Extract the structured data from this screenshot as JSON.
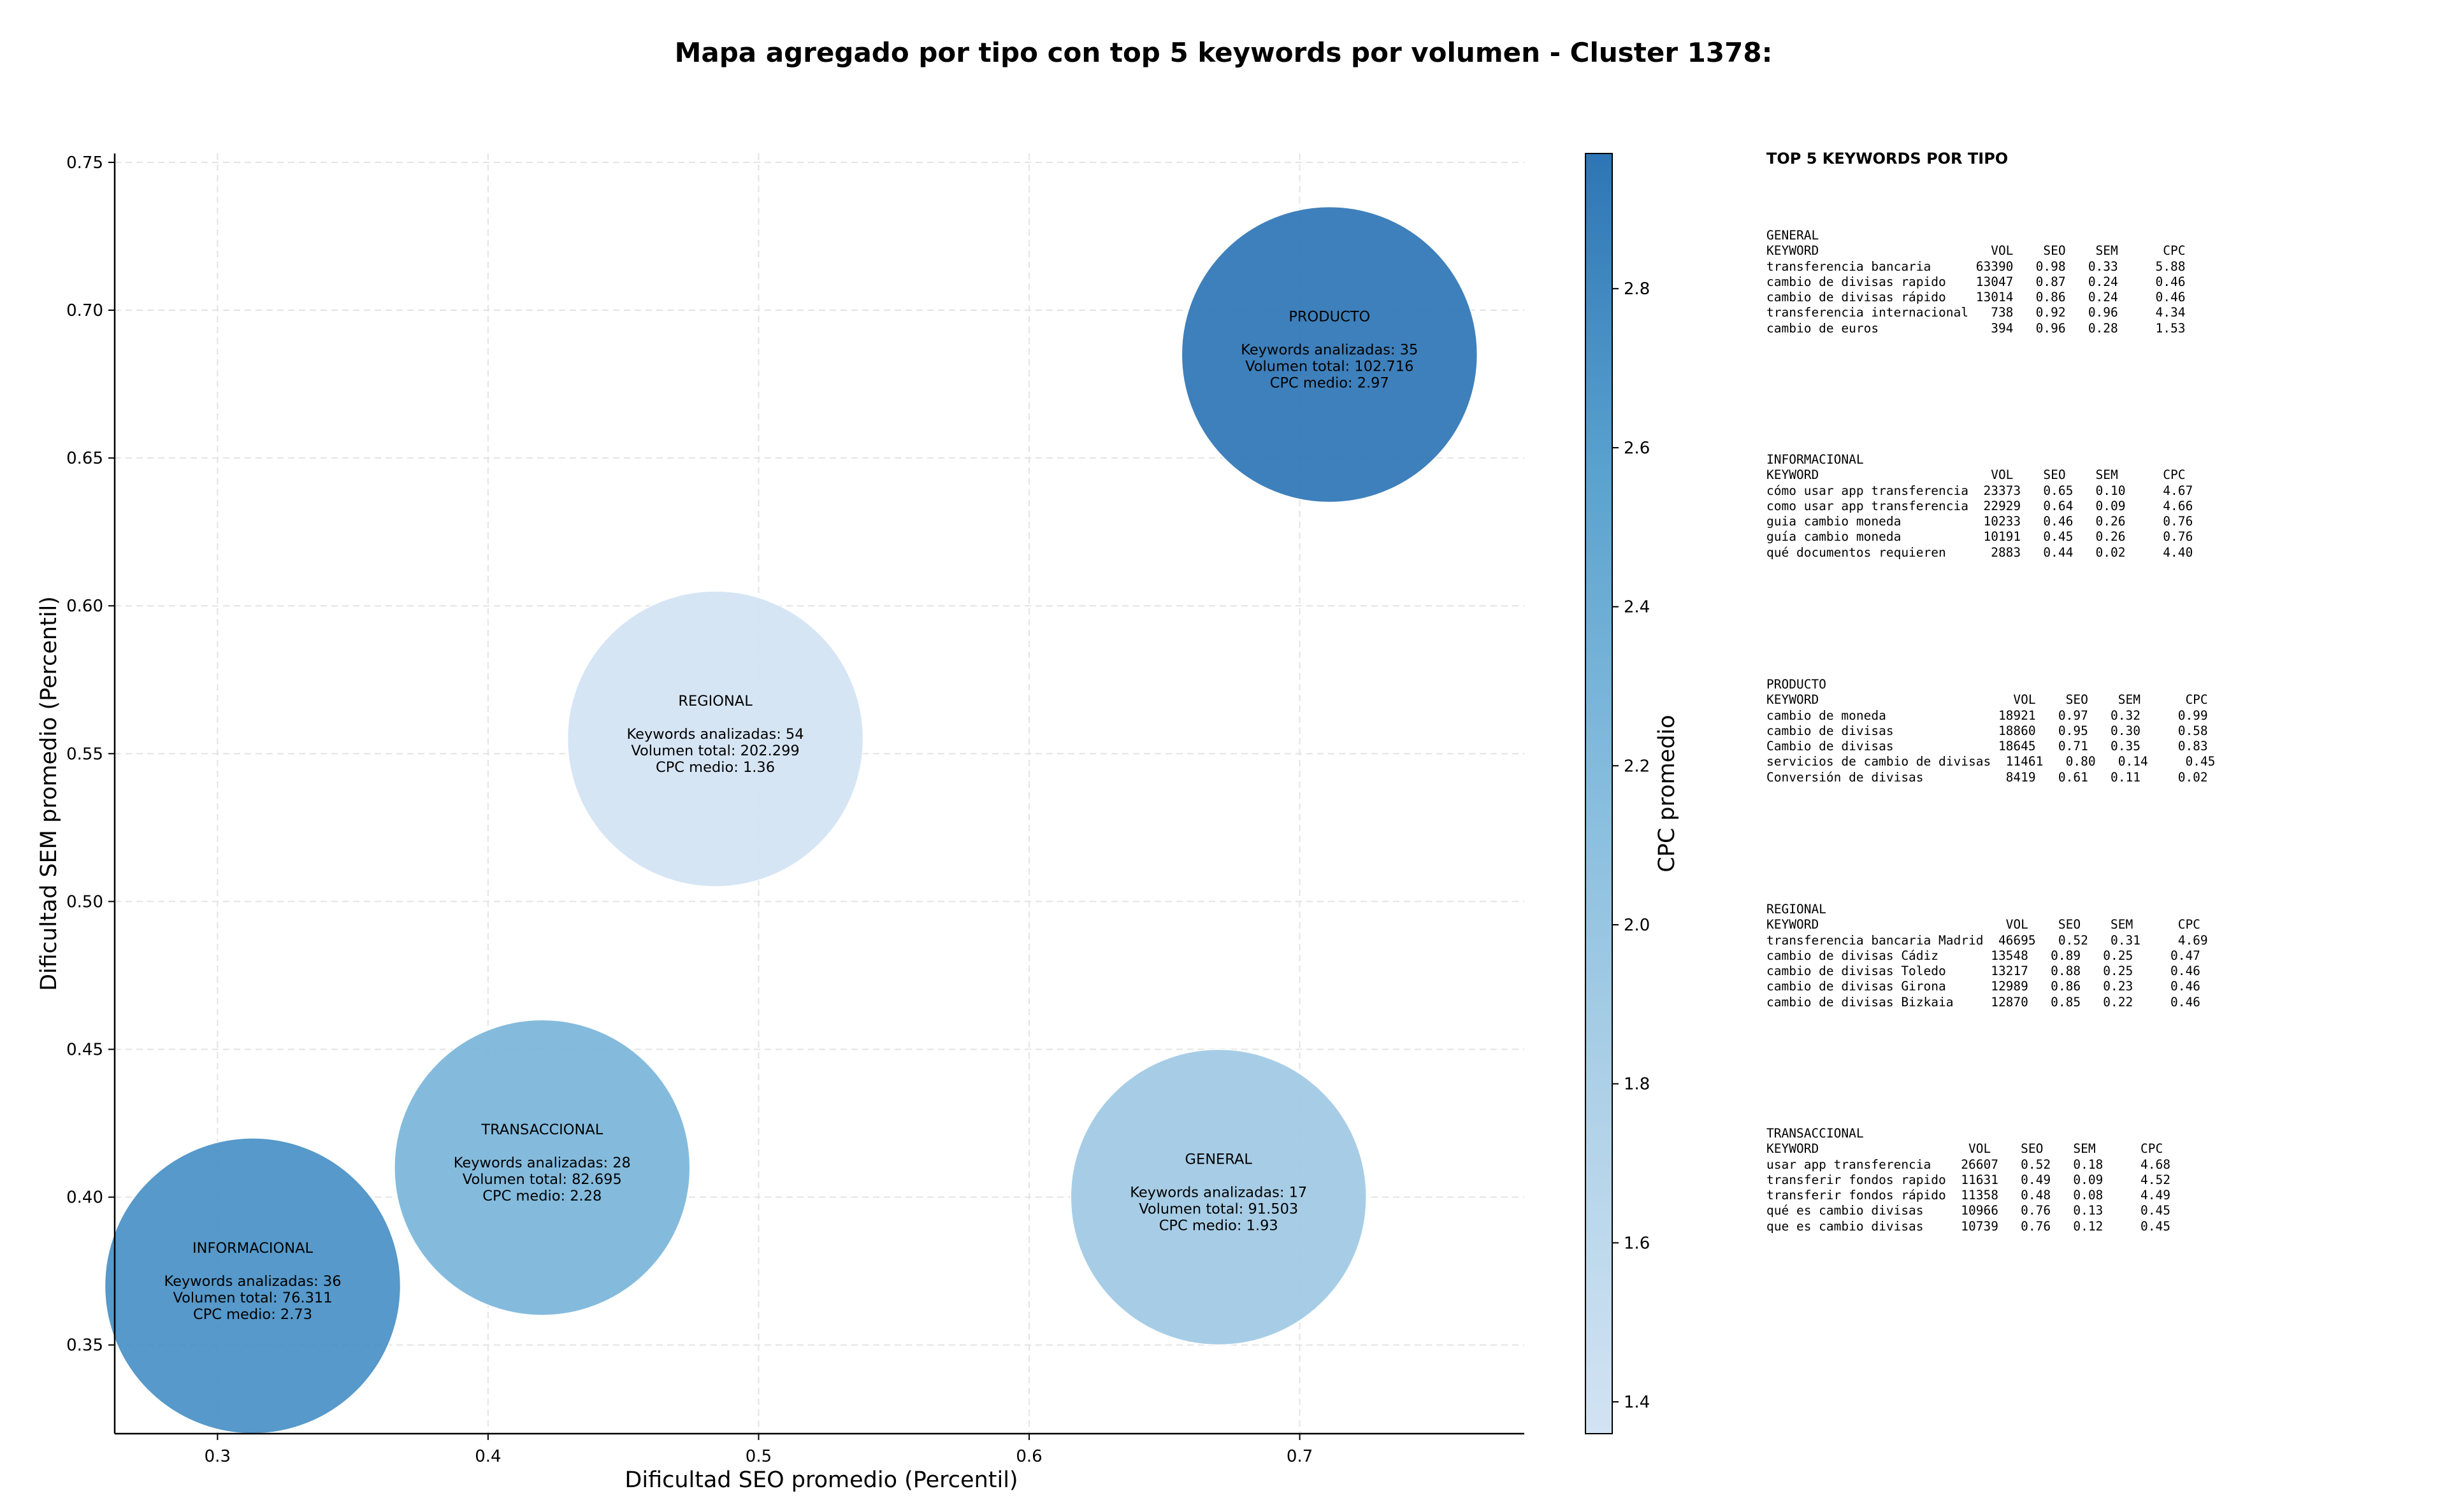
{
  "chart_data": {
    "type": "scatter",
    "title": "Mapa agregado por tipo con top 5 keywords por volumen - Cluster 1378:",
    "xlabel": "Dificultad SEO promedio (Percentil)",
    "ylabel": "Dificultad SEM promedio (Percentil)",
    "xlim": [
      0.262,
      0.783
    ],
    "ylim": [
      0.32,
      0.753
    ],
    "xticks": [
      "0.3",
      "0.4",
      "0.5",
      "0.6",
      "0.7"
    ],
    "yticks": [
      "0.35",
      "0.40",
      "0.45",
      "0.50",
      "0.55",
      "0.60",
      "0.65",
      "0.70",
      "0.75"
    ],
    "grid": true,
    "colorbar": {
      "label": "CPC promedio",
      "min": 1.36,
      "max": 2.97,
      "ticks": [
        "1.4",
        "1.6",
        "1.8",
        "2.0",
        "2.2",
        "2.4",
        "2.6",
        "2.8"
      ]
    },
    "points": [
      {
        "tipo": "PRODUCTO",
        "x": 0.711,
        "y": 0.685,
        "keywords_line": "Keywords analizadas: 35",
        "volumen_line": "Volumen total: 102.716",
        "cpc_line": "CPC medio: 2.97",
        "keywords": 35,
        "volumen": 102716,
        "cpc": 2.97
      },
      {
        "tipo": "REGIONAL",
        "x": 0.484,
        "y": 0.555,
        "keywords_line": "Keywords analizadas: 54",
        "volumen_line": "Volumen total: 202.299",
        "cpc_line": "CPC medio: 1.36",
        "keywords": 54,
        "volumen": 202299,
        "cpc": 1.36
      },
      {
        "tipo": "TRANSACCIONAL",
        "x": 0.42,
        "y": 0.41,
        "keywords_line": "Keywords analizadas: 28",
        "volumen_line": "Volumen total: 82.695",
        "cpc_line": "CPC medio: 2.28",
        "keywords": 28,
        "volumen": 82695,
        "cpc": 2.28
      },
      {
        "tipo": "GENERAL",
        "x": 0.67,
        "y": 0.4,
        "keywords_line": "Keywords analizadas: 17",
        "volumen_line": "Volumen total: 91.503",
        "cpc_line": "CPC medio: 1.93",
        "keywords": 17,
        "volumen": 91503,
        "cpc": 1.93
      },
      {
        "tipo": "INFORMACIONAL",
        "x": 0.313,
        "y": 0.37,
        "keywords_line": "Keywords analizadas: 36",
        "volumen_line": "Volumen total: 76.311",
        "cpc_line": "CPC medio: 2.73",
        "keywords": 36,
        "volumen": 76311,
        "cpc": 2.73
      }
    ]
  },
  "side_panel": {
    "title": "TOP 5 KEYWORDS POR TIPO",
    "blocks": [
      {
        "tipo": "GENERAL",
        "lines": [
          "GENERAL",
          "KEYWORD                       VOL    SEO    SEM      CPC",
          "transferencia bancaria      63390   0.98   0.33     5.88",
          "cambio de divisas rapido    13047   0.87   0.24     0.46",
          "cambio de divisas rápido    13014   0.86   0.24     0.46",
          "transferencia internacional   738   0.92   0.96     4.34",
          "cambio de euros               394   0.96   0.28     1.53"
        ]
      },
      {
        "tipo": "INFORMACIONAL",
        "lines": [
          "INFORMACIONAL",
          "KEYWORD                       VOL    SEO    SEM      CPC",
          "cómo usar app transferencia  23373   0.65   0.10     4.67",
          "como usar app transferencia  22929   0.64   0.09     4.66",
          "guia cambio moneda           10233   0.46   0.26     0.76",
          "guía cambio moneda           10191   0.45   0.26     0.76",
          "qué documentos requieren      2883   0.44   0.02     4.40"
        ]
      },
      {
        "tipo": "PRODUCTO",
        "lines": [
          "PRODUCTO",
          "KEYWORD                          VOL    SEO    SEM      CPC",
          "cambio de moneda               18921   0.97   0.32     0.99",
          "cambio de divisas              18860   0.95   0.30     0.58",
          "Cambio de divisas              18645   0.71   0.35     0.83",
          "servicios de cambio de divisas  11461   0.80   0.14     0.45",
          "Conversión de divisas           8419   0.61   0.11     0.02"
        ]
      },
      {
        "tipo": "REGIONAL",
        "lines": [
          "REGIONAL",
          "KEYWORD                         VOL    SEO    SEM      CPC",
          "transferencia bancaria Madrid  46695   0.52   0.31     4.69",
          "cambio de divisas Cádiz       13548   0.89   0.25     0.47",
          "cambio de divisas Toledo      13217   0.88   0.25     0.46",
          "cambio de divisas Girona      12989   0.86   0.23     0.46",
          "cambio de divisas Bizkaia     12870   0.85   0.22     0.46"
        ]
      },
      {
        "tipo": "TRANSACCIONAL",
        "lines": [
          "TRANSACCIONAL",
          "KEYWORD                    VOL    SEO    SEM      CPC",
          "usar app transferencia    26607   0.52   0.18     4.68",
          "transferir fondos rapido  11631   0.49   0.09     4.52",
          "transferir fondos rápido  11358   0.48   0.08     4.49",
          "qué es cambio divisas     10966   0.76   0.13     0.45",
          "que es cambio divisas     10739   0.76   0.12     0.45"
        ]
      }
    ]
  }
}
